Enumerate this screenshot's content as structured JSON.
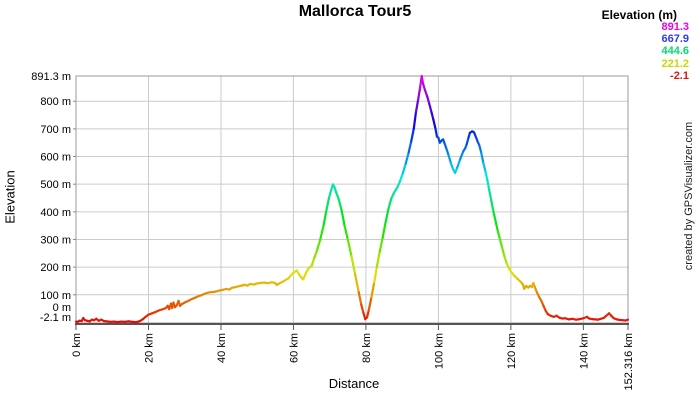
{
  "title": "Mallorca Tour5",
  "watermark": "created by GPSVisualizer.com",
  "legend": {
    "title": "Elevation (m)",
    "entries": [
      {
        "label": "891.3",
        "color": "#e605e6"
      },
      {
        "label": "667.9",
        "color": "#2b3fe3"
      },
      {
        "label": "444.6",
        "color": "#06d96e"
      },
      {
        "label": "221.2",
        "color": "#c6d905"
      },
      {
        "label": "-2.1",
        "color": "#e81010"
      }
    ]
  },
  "chart_data": {
    "type": "line",
    "title": "Mallorca Tour5",
    "xlabel": "Distance",
    "ylabel": "Elevation",
    "x_unit": "km",
    "y_unit": "m",
    "xlim": [
      0,
      152.316
    ],
    "ylim": [
      -2.1,
      891.3
    ],
    "grid": true,
    "legend_position": "top-right",
    "color_rule": "line colored by elevation: hue = 300*(elev+2.1)/893.4, red at -2.1 m to magenta at 891.3 m",
    "x_ticks": [
      {
        "value": 0,
        "label": "0 km"
      },
      {
        "value": 20,
        "label": "20 km"
      },
      {
        "value": 40,
        "label": "40 km"
      },
      {
        "value": 60,
        "label": "60 km"
      },
      {
        "value": 80,
        "label": "80 km"
      },
      {
        "value": 100,
        "label": "100 km"
      },
      {
        "value": 120,
        "label": "120 km"
      },
      {
        "value": 140,
        "label": "140 km"
      },
      {
        "value": 152.316,
        "label": "152.316 km"
      }
    ],
    "y_ticks": [
      {
        "value": 891.3,
        "label": "891.3 m"
      },
      {
        "value": 800,
        "label": "800 m"
      },
      {
        "value": 700,
        "label": "700 m"
      },
      {
        "value": 600,
        "label": "600 m"
      },
      {
        "value": 500,
        "label": "500 m"
      },
      {
        "value": 400,
        "label": "400 m"
      },
      {
        "value": 300,
        "label": "300 m"
      },
      {
        "value": 200,
        "label": "200 m"
      },
      {
        "value": 100,
        "label": "100 m"
      },
      {
        "value": 0,
        "label": "0 m"
      },
      {
        "value": -2.1,
        "label": "-2.1 m"
      }
    ],
    "points": [
      [
        0,
        3
      ],
      [
        0.4,
        2
      ],
      [
        1,
        6
      ],
      [
        1.6,
        5
      ],
      [
        2,
        16
      ],
      [
        2.4,
        9
      ],
      [
        3,
        6
      ],
      [
        3.8,
        4
      ],
      [
        4.4,
        10
      ],
      [
        5,
        8
      ],
      [
        5.6,
        13
      ],
      [
        6.3,
        6
      ],
      [
        7,
        10
      ],
      [
        7.7,
        5
      ],
      [
        8.5,
        4
      ],
      [
        9.5,
        2
      ],
      [
        10.5,
        3
      ],
      [
        11.5,
        1
      ],
      [
        12.5,
        3
      ],
      [
        13.5,
        2
      ],
      [
        14.5,
        4
      ],
      [
        15.5,
        2
      ],
      [
        16.5,
        1
      ],
      [
        17.2,
        3
      ],
      [
        17.8,
        6
      ],
      [
        18.5,
        12
      ],
      [
        19.2,
        20
      ],
      [
        20,
        28
      ],
      [
        21,
        33
      ],
      [
        22,
        38
      ],
      [
        23,
        44
      ],
      [
        24,
        48
      ],
      [
        24.8,
        52
      ],
      [
        25.3,
        60
      ],
      [
        25.7,
        48
      ],
      [
        26.2,
        68
      ],
      [
        26.5,
        52
      ],
      [
        26.9,
        72
      ],
      [
        27.3,
        55
      ],
      [
        27.8,
        62
      ],
      [
        28.3,
        78
      ],
      [
        28.7,
        60
      ],
      [
        29.2,
        66
      ],
      [
        30,
        72
      ],
      [
        31,
        78
      ],
      [
        32,
        85
      ],
      [
        33,
        90
      ],
      [
        33.8,
        95
      ],
      [
        34.5,
        98
      ],
      [
        35.2,
        102
      ],
      [
        36,
        106
      ],
      [
        37,
        109
      ],
      [
        38.4,
        111
      ],
      [
        39.5,
        115
      ],
      [
        40.5,
        118
      ],
      [
        41.5,
        121
      ],
      [
        42.3,
        119
      ],
      [
        43,
        125
      ],
      [
        44,
        128
      ],
      [
        45,
        131
      ],
      [
        46,
        134
      ],
      [
        46.6,
        136
      ],
      [
        47.3,
        133
      ],
      [
        48,
        139
      ],
      [
        49,
        137
      ],
      [
        50,
        141
      ],
      [
        51,
        143
      ],
      [
        52,
        144
      ],
      [
        53,
        142
      ],
      [
        54,
        145
      ],
      [
        54.9,
        143
      ],
      [
        55.4,
        136
      ],
      [
        56,
        140
      ],
      [
        56.8,
        146
      ],
      [
        57.5,
        151
      ],
      [
        58.6,
        159
      ],
      [
        59.3,
        170
      ],
      [
        60,
        180
      ],
      [
        60.9,
        188
      ],
      [
        61.5,
        175
      ],
      [
        62.2,
        162
      ],
      [
        62.7,
        156
      ],
      [
        63.5,
        180
      ],
      [
        64.2,
        196
      ],
      [
        65,
        204
      ],
      [
        65.8,
        235
      ],
      [
        66.5,
        260
      ],
      [
        67.4,
        300
      ],
      [
        68.3,
        350
      ],
      [
        69.1,
        405
      ],
      [
        69.8,
        450
      ],
      [
        70.4,
        478
      ],
      [
        70.9,
        499
      ],
      [
        71.3,
        490
      ],
      [
        71.8,
        470
      ],
      [
        72.5,
        445
      ],
      [
        73.3,
        405
      ],
      [
        74.1,
        350
      ],
      [
        75,
        300
      ],
      [
        76,
        240
      ],
      [
        77,
        175
      ],
      [
        78,
        110
      ],
      [
        78.7,
        65
      ],
      [
        79.3,
        35
      ],
      [
        79.8,
        12
      ],
      [
        80.3,
        18
      ],
      [
        80.8,
        45
      ],
      [
        81.5,
        90
      ],
      [
        82.3,
        145
      ],
      [
        83,
        200
      ],
      [
        83.8,
        255
      ],
      [
        84.6,
        305
      ],
      [
        85.4,
        360
      ],
      [
        86.2,
        410
      ],
      [
        87,
        448
      ],
      [
        87.8,
        470
      ],
      [
        88.6,
        487
      ],
      [
        89.4,
        510
      ],
      [
        90.2,
        540
      ],
      [
        91,
        575
      ],
      [
        91.8,
        615
      ],
      [
        92.5,
        655
      ],
      [
        93.2,
        700
      ],
      [
        93.8,
        760
      ],
      [
        94.4,
        805
      ],
      [
        94.9,
        845
      ],
      [
        95.4,
        891
      ],
      [
        95.8,
        862
      ],
      [
        96.3,
        840
      ],
      [
        96.9,
        818
      ],
      [
        97.5,
        790
      ],
      [
        98.1,
        760
      ],
      [
        98.6,
        734
      ],
      [
        99.2,
        700
      ],
      [
        99.6,
        672
      ],
      [
        100,
        668
      ],
      [
        100.4,
        650
      ],
      [
        100.9,
        658
      ],
      [
        101.3,
        662
      ],
      [
        101.8,
        644
      ],
      [
        102.3,
        625
      ],
      [
        102.8,
        605
      ],
      [
        103.4,
        578
      ],
      [
        104,
        556
      ],
      [
        104.6,
        541
      ],
      [
        105.2,
        560
      ],
      [
        106,
        590
      ],
      [
        106.9,
        620
      ],
      [
        107.4,
        630
      ],
      [
        107.8,
        644
      ],
      [
        108.3,
        668
      ],
      [
        108.7,
        686
      ],
      [
        109.3,
        691
      ],
      [
        109.8,
        688
      ],
      [
        110.3,
        672
      ],
      [
        110.8,
        655
      ],
      [
        111.3,
        640
      ],
      [
        111.8,
        615
      ],
      [
        112.4,
        577
      ],
      [
        113,
        545
      ],
      [
        113.5,
        515
      ],
      [
        114,
        480
      ],
      [
        114.6,
        440
      ],
      [
        115.2,
        400
      ],
      [
        115.8,
        365
      ],
      [
        116.4,
        330
      ],
      [
        117,
        300
      ],
      [
        117.6,
        270
      ],
      [
        118.2,
        240
      ],
      [
        118.8,
        215
      ],
      [
        119.5,
        195
      ],
      [
        120.2,
        180
      ],
      [
        121,
        168
      ],
      [
        121.8,
        158
      ],
      [
        122.6,
        148
      ],
      [
        123.2,
        140
      ],
      [
        123.7,
        122
      ],
      [
        124.2,
        132
      ],
      [
        124.8,
        126
      ],
      [
        125.3,
        132
      ],
      [
        125.8,
        128
      ],
      [
        126.2,
        142
      ],
      [
        126.6,
        128
      ],
      [
        127.2,
        108
      ],
      [
        127.8,
        92
      ],
      [
        128.4,
        78
      ],
      [
        129,
        60
      ],
      [
        129.6,
        42
      ],
      [
        130.2,
        30
      ],
      [
        131,
        24
      ],
      [
        131.8,
        20
      ],
      [
        132.6,
        24
      ],
      [
        133.4,
        17
      ],
      [
        134.2,
        14
      ],
      [
        135,
        15
      ],
      [
        136,
        11
      ],
      [
        137,
        13
      ],
      [
        138,
        10
      ],
      [
        139,
        12
      ],
      [
        140,
        15
      ],
      [
        141,
        20
      ],
      [
        141.6,
        14
      ],
      [
        142.4,
        12
      ],
      [
        143.2,
        11
      ],
      [
        144,
        10
      ],
      [
        144.8,
        13
      ],
      [
        145.6,
        16
      ],
      [
        146.3,
        24
      ],
      [
        147.1,
        33
      ],
      [
        147.7,
        24
      ],
      [
        148.4,
        15
      ],
      [
        149.2,
        11
      ],
      [
        150,
        9
      ],
      [
        150.8,
        8
      ],
      [
        151.6,
        7
      ],
      [
        152.3,
        10
      ]
    ]
  }
}
